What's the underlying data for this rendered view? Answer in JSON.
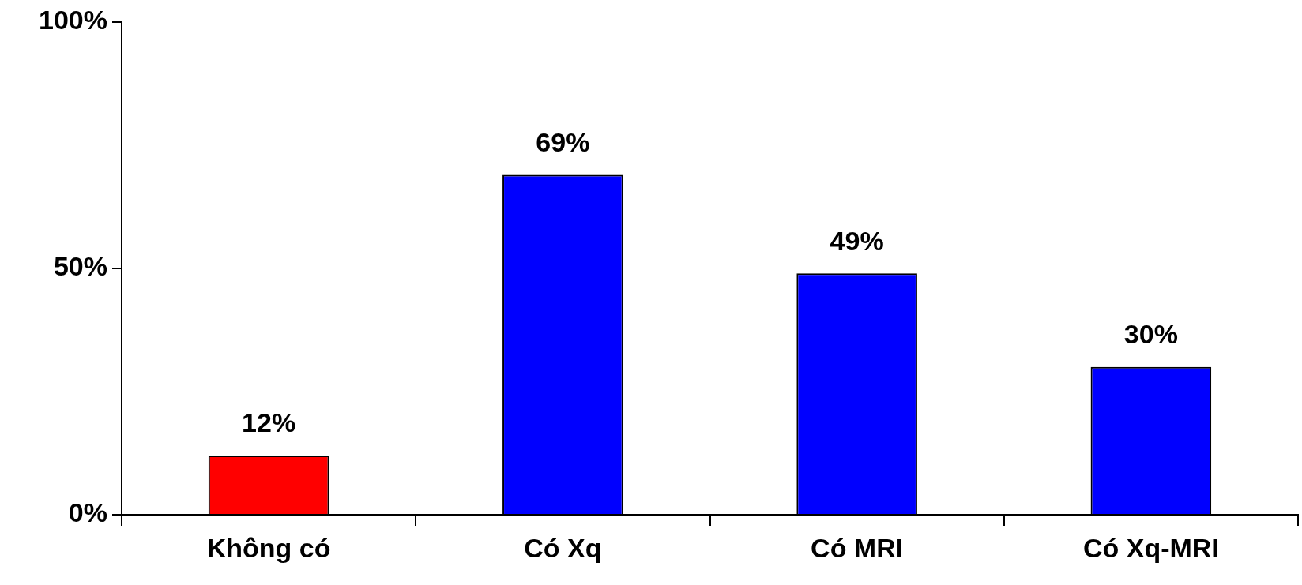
{
  "chart_data": {
    "type": "bar",
    "categories": [
      "Không có",
      "Có Xq",
      "Có MRI",
      "Có Xq-MRI"
    ],
    "values": [
      12,
      69,
      49,
      30
    ],
    "colors": [
      "#ff0000",
      "#0000ff",
      "#0000ff",
      "#0000ff"
    ],
    "value_labels": [
      "12%",
      "69%",
      "49%",
      "30%"
    ],
    "ylim": [
      0,
      100
    ],
    "yticks": [
      {
        "value": 0,
        "label": "0%"
      },
      {
        "value": 50,
        "label": "50%"
      },
      {
        "value": 100,
        "label": "100%"
      }
    ],
    "grid": false,
    "legend": false
  }
}
